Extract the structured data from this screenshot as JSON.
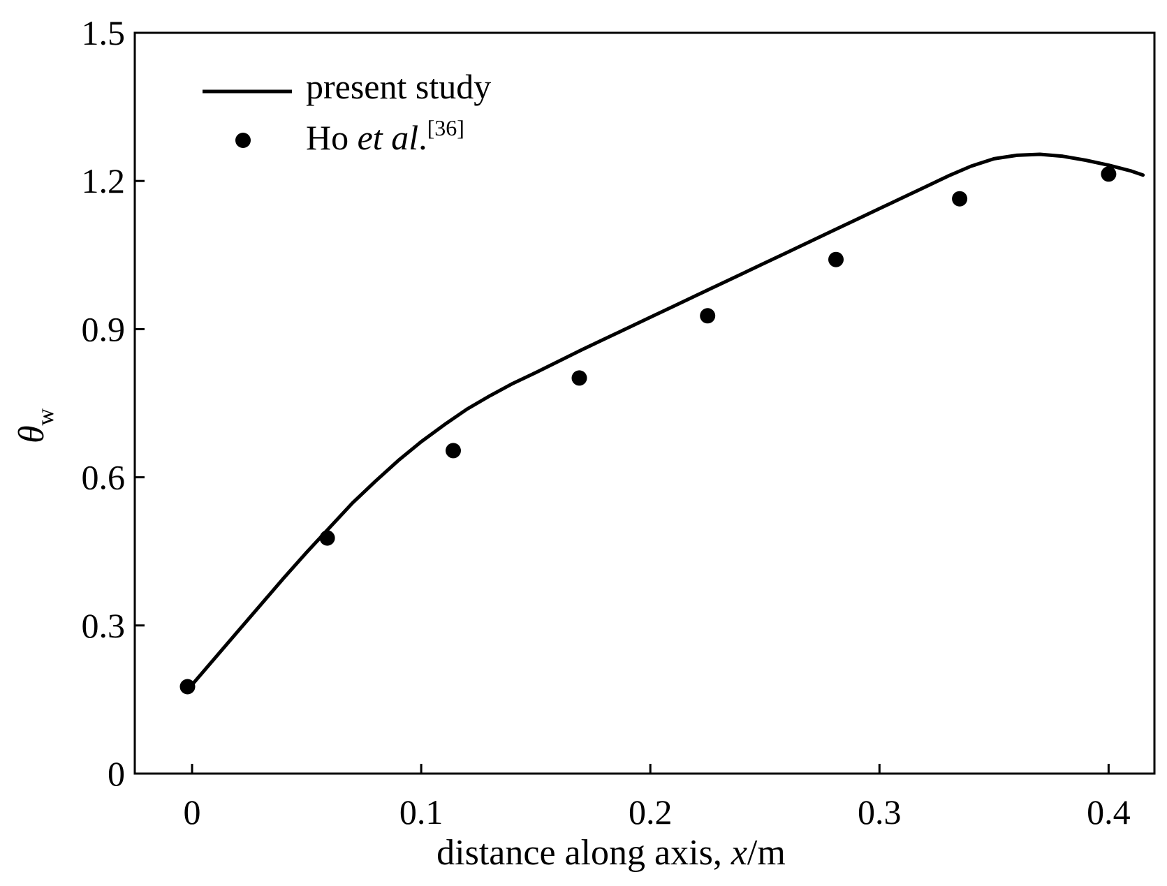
{
  "chart_data": {
    "type": "line",
    "title": "",
    "xlabel": {
      "prefix": "distance along axis, ",
      "var": "x",
      "suffix": "/m"
    },
    "ylabel": {
      "symbol": "θ",
      "subscript": "w"
    },
    "xlim": [
      -0.025,
      0.42
    ],
    "ylim": [
      0,
      1.5
    ],
    "x_ticks": [
      "0",
      "0.1",
      "0.2",
      "0.3",
      "0.4"
    ],
    "y_ticks": [
      "0",
      "0.3",
      "0.6",
      "0.9",
      "1.2",
      "1.5"
    ],
    "grid": false,
    "legend_position": "top-left",
    "legend": [
      {
        "text": "present study",
        "style": "line"
      },
      {
        "text_prefix": "Ho ",
        "text_italic": "et al",
        "text_after": ".",
        "text_sup": "[36]",
        "style": "marker"
      }
    ],
    "series": [
      {
        "name": "present study",
        "style": "line",
        "color": "#000000",
        "x": [
          0.0,
          0.01,
          0.02,
          0.03,
          0.04,
          0.05,
          0.06,
          0.07,
          0.08,
          0.09,
          0.1,
          0.11,
          0.12,
          0.13,
          0.14,
          0.15,
          0.16,
          0.17,
          0.18,
          0.19,
          0.2,
          0.21,
          0.22,
          0.23,
          0.24,
          0.25,
          0.26,
          0.27,
          0.28,
          0.29,
          0.3,
          0.31,
          0.32,
          0.33,
          0.34,
          0.35,
          0.36,
          0.37,
          0.38,
          0.39,
          0.4,
          0.41,
          0.415
        ],
        "y": [
          0.18,
          0.234,
          0.288,
          0.342,
          0.396,
          0.448,
          0.498,
          0.548,
          0.592,
          0.634,
          0.672,
          0.706,
          0.738,
          0.765,
          0.79,
          0.812,
          0.835,
          0.858,
          0.88,
          0.902,
          0.924,
          0.946,
          0.968,
          0.99,
          1.012,
          1.034,
          1.056,
          1.078,
          1.1,
          1.122,
          1.144,
          1.166,
          1.188,
          1.21,
          1.23,
          1.245,
          1.252,
          1.254,
          1.25,
          1.242,
          1.232,
          1.22,
          1.212
        ]
      },
      {
        "name": "Ho et al.",
        "style": "marker",
        "color": "#000000",
        "x": [
          -0.002,
          0.059,
          0.114,
          0.169,
          0.225,
          0.281,
          0.335,
          0.4
        ],
        "y": [
          0.176,
          0.477,
          0.654,
          0.801,
          0.927,
          1.041,
          1.164,
          1.214
        ]
      }
    ]
  }
}
